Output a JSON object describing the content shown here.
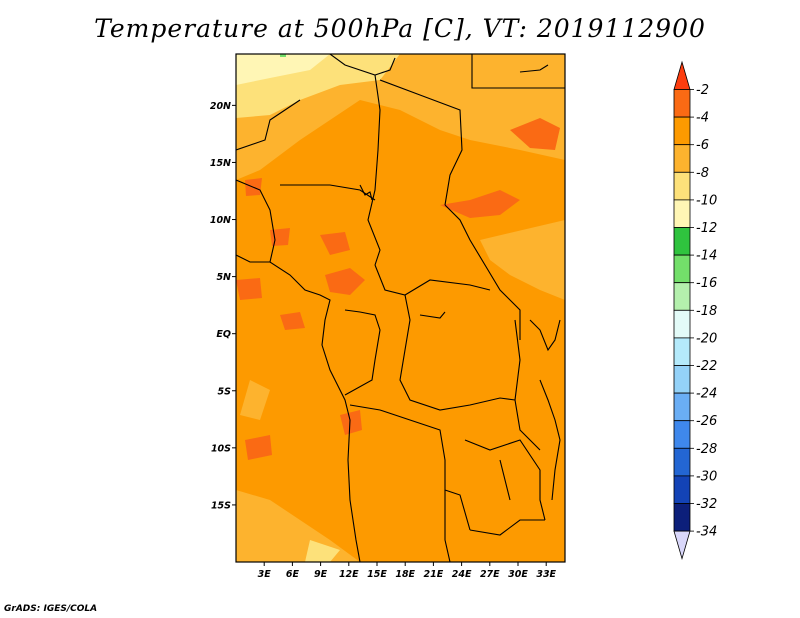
{
  "title": "Temperature at 500hPa [C], VT: 2019112900",
  "credit": "GrADS: IGES/COLA",
  "map": {
    "lon_ticks": [
      "3E",
      "6E",
      "9E",
      "12E",
      "15E",
      "18E",
      "21E",
      "24E",
      "27E",
      "30E",
      "33E"
    ],
    "lon_values": [
      3,
      6,
      9,
      12,
      15,
      18,
      21,
      24,
      27,
      30,
      33
    ],
    "lat_ticks": [
      "20N",
      "15N",
      "10N",
      "5N",
      "EQ",
      "5S",
      "10S",
      "15S"
    ],
    "lat_values": [
      20,
      15,
      10,
      5,
      0,
      -5,
      -10,
      -15
    ],
    "lon_range": [
      0,
      35
    ],
    "lat_range": [
      -20,
      24.5
    ]
  },
  "colorbar": {
    "labels": [
      "-2",
      "-4",
      "-6",
      "-8",
      "-10",
      "-12",
      "-14",
      "-16",
      "-18",
      "-20",
      "-22",
      "-24",
      "-26",
      "-28",
      "-30",
      "-32",
      "-34"
    ],
    "colors": [
      "#fd3d0f",
      "#fa6a14",
      "#fd9a00",
      "#fdb32e",
      "#fde17a",
      "#fff6b5",
      "#2fc33e",
      "#73df6a",
      "#b4f0ad",
      "#e3fbf8",
      "#b4eafb",
      "#94d2f8",
      "#6aaef5",
      "#3f88ec",
      "#2366d3",
      "#1343b6",
      "#0c1f7a",
      "#d9d7fa"
    ]
  }
}
